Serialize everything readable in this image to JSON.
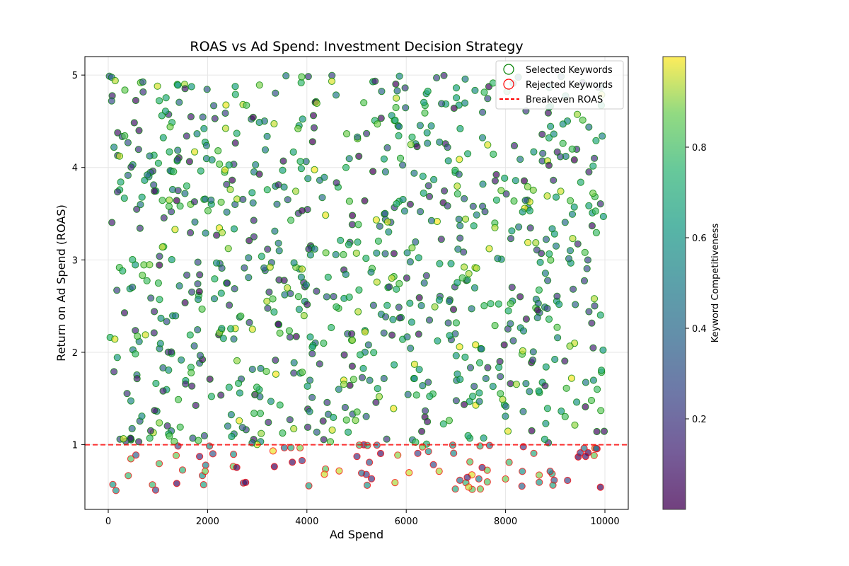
{
  "chart_data": {
    "type": "scatter",
    "title": "ROAS vs Ad Spend: Investment Decision Strategy",
    "xlabel": "Ad Spend",
    "ylabel": "Return on Ad Spend (ROAS)",
    "xlim": [
      -470,
      10470
    ],
    "ylim": [
      0.3,
      5.2
    ],
    "xticks": [
      0,
      2000,
      4000,
      6000,
      8000,
      10000
    ],
    "yticks": [
      1,
      2,
      3,
      4,
      5
    ],
    "grid": true,
    "legend_position": "top-right",
    "breakeven_roas": 1,
    "colorbar": {
      "label": "Keyword Competitiveness",
      "ticks": [
        0.2,
        0.4,
        0.6,
        0.8
      ],
      "range": [
        0.0,
        1.0
      ],
      "colormap": "viridis"
    },
    "legend": {
      "selected": "Selected Keywords",
      "rejected": "Rejected Keywords",
      "breakeven": "Breakeven ROAS"
    },
    "colors": {
      "selected_edge": "#008000",
      "rejected_edge": "#ff0000",
      "breakeven_line": "#ff0000"
    },
    "point_generation": {
      "count": 1000,
      "x_range": [
        0,
        10000
      ],
      "y_range": [
        0.5,
        5.0
      ],
      "threshold": 1.0
    },
    "series": [
      {
        "name": "Selected Keywords",
        "description_note": "Points with ROAS >= 1.0, edge color green"
      },
      {
        "name": "Rejected Keywords",
        "description_note": "Points with ROAS < 1.0, edge color red"
      }
    ]
  }
}
